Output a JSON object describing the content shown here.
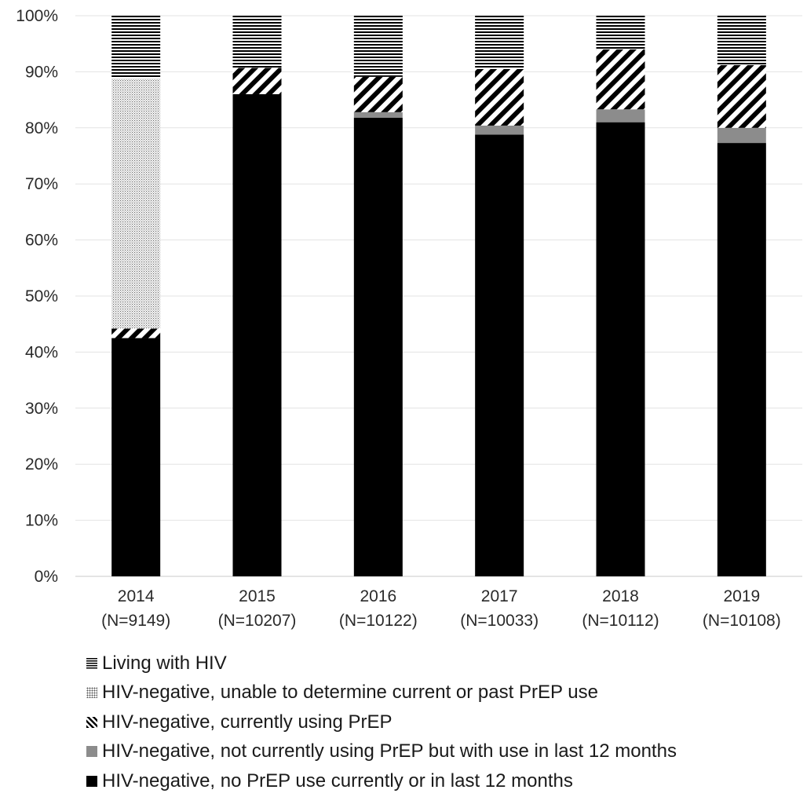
{
  "chart_data": {
    "type": "bar",
    "stacked": true,
    "categories": [
      "2014",
      "2015",
      "2016",
      "2017",
      "2018",
      "2019"
    ],
    "category_notes": [
      "(N=9149)",
      "(N=10207)",
      "(N=10122)",
      "(N=10033)",
      "(N=10112)",
      "(N=10108)"
    ],
    "series": [
      {
        "name": "HIV-negative, no PrEP use currently or in last 12 months",
        "pattern": "solid-black",
        "color": "#000000",
        "values": [
          42.5,
          86.0,
          81.8,
          78.8,
          81.0,
          77.3
        ]
      },
      {
        "name": "HIV-negative, not currently using PrEP but with use in last 12 months",
        "pattern": "solid-gray",
        "color": "#8c8c8c",
        "values": [
          0,
          0,
          1.0,
          1.6,
          2.3,
          2.7
        ]
      },
      {
        "name": "HIV-negative, currently using PrEP",
        "pattern": "diagonal-stripes",
        "color": "#000000",
        "values": [
          1.7,
          4.7,
          6.3,
          10.1,
          10.7,
          11.2
        ]
      },
      {
        "name": "HIV-negative, unable to determine current or past PrEP use",
        "pattern": "fine-dots",
        "color": "#cccccc",
        "values": [
          44.6,
          0,
          0,
          0,
          0,
          0
        ]
      },
      {
        "name": "Living with HIV",
        "pattern": "horizontal-lines",
        "color": "#000000",
        "values": [
          11.2,
          9.3,
          10.9,
          9.5,
          6.0,
          8.8
        ]
      }
    ],
    "y_ticks": [
      "0%",
      "10%",
      "20%",
      "30%",
      "40%",
      "50%",
      "60%",
      "70%",
      "80%",
      "90%",
      "100%"
    ],
    "ylim": [
      0,
      100
    ],
    "grid": true,
    "legend_position": "bottom",
    "legend_order": [
      "Living with HIV",
      "HIV-negative, unable to determine current or past PrEP use",
      "HIV-negative, currently using PrEP",
      "HIV-negative, not currently using PrEP but with use in last 12 months",
      "HIV-negative, no PrEP use currently or in last 12 months"
    ]
  }
}
